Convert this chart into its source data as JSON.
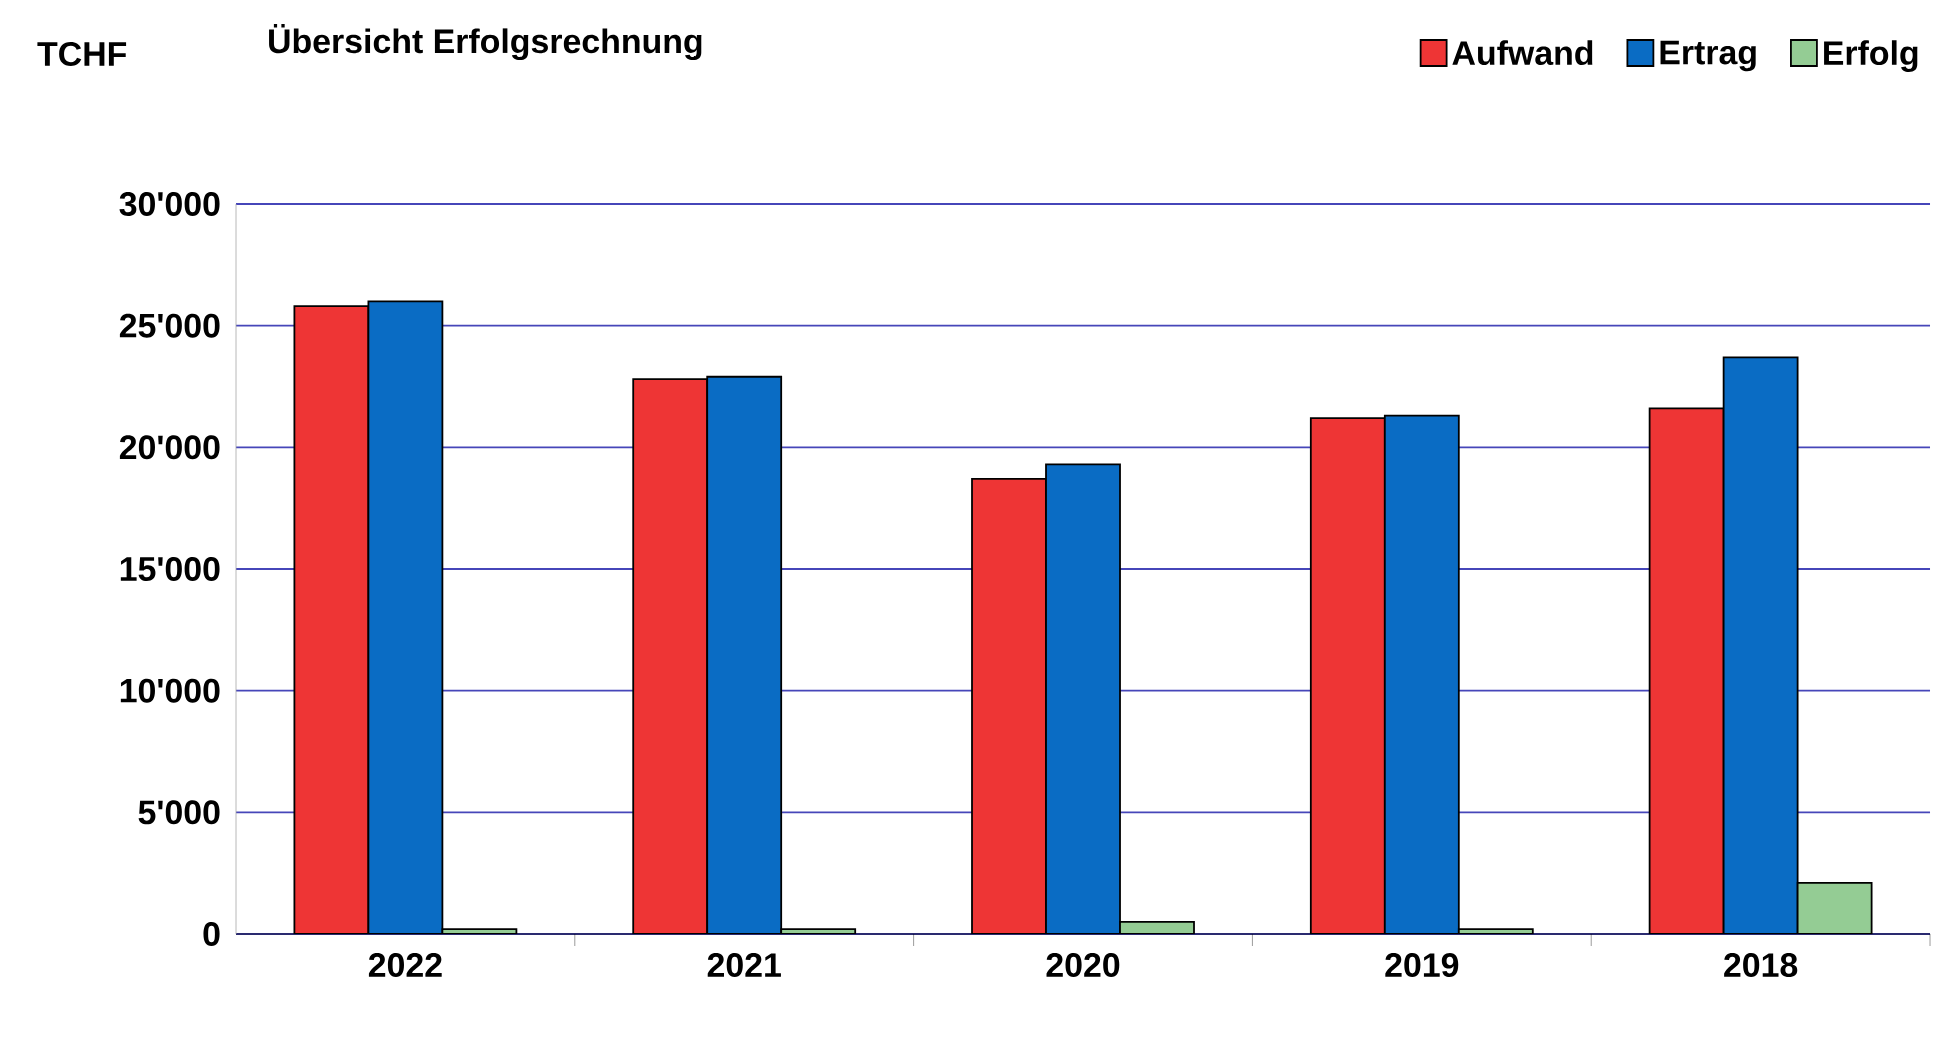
{
  "chart_data": {
    "type": "bar",
    "title": "Übersicht Erfolgsrechnung",
    "ylabel": "TCHF",
    "categories": [
      "2022",
      "2021",
      "2020",
      "2019",
      "2018"
    ],
    "series": [
      {
        "name": "Aufwand",
        "color": "#ee3535",
        "values": [
          25800,
          22800,
          18700,
          21200,
          21600
        ]
      },
      {
        "name": "Ertrag",
        "color": "#0a6cc4",
        "values": [
          26000,
          22900,
          19300,
          21300,
          23700
        ]
      },
      {
        "name": "Erfolg",
        "color": "#94cc94",
        "values": [
          200,
          200,
          500,
          200,
          2100
        ]
      }
    ],
    "ylim": [
      0,
      30000
    ],
    "yticks": [
      {
        "value": 0,
        "label": "0"
      },
      {
        "value": 5000,
        "label": "5'000"
      },
      {
        "value": 10000,
        "label": "10'000"
      },
      {
        "value": 15000,
        "label": "15'000"
      },
      {
        "value": 20000,
        "label": "20'000"
      },
      {
        "value": 25000,
        "label": "25'000"
      },
      {
        "value": 30000,
        "label": "30'000"
      }
    ],
    "grid": "y",
    "legend": "top right"
  }
}
